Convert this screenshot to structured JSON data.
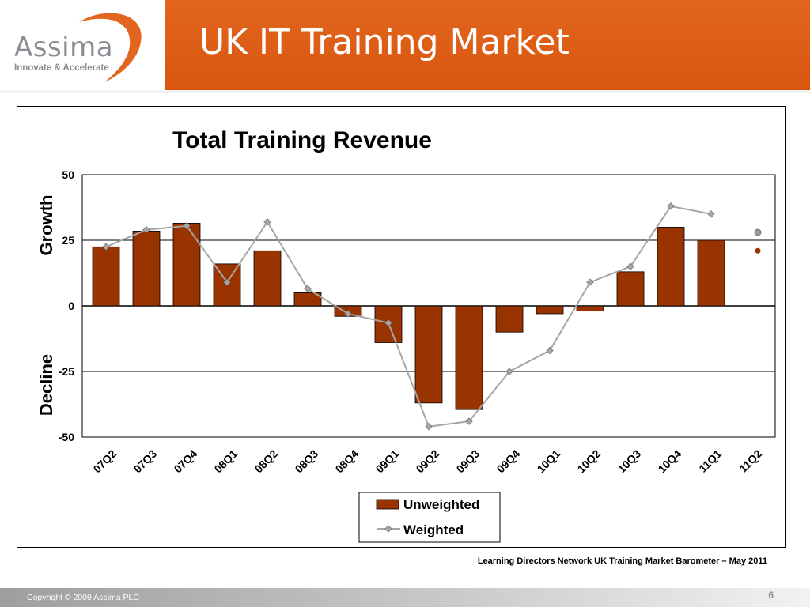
{
  "header": {
    "logo_name": "Assima",
    "logo_tagline": "Innovate & Accelerate",
    "title": "UK IT Training Market"
  },
  "chart_data": {
    "type": "bar",
    "title": "Total Training Revenue",
    "ylabel_top": "Growth",
    "ylabel_bottom": "Decline",
    "categories": [
      "07Q2",
      "07Q3",
      "07Q4",
      "08Q1",
      "08Q2",
      "08Q3",
      "08Q4",
      "09Q1",
      "09Q2",
      "09Q3",
      "09Q4",
      "10Q1",
      "10Q2",
      "10Q3",
      "10Q4",
      "11Q1",
      "11Q2"
    ],
    "ylim": [
      -50,
      50
    ],
    "yticks": [
      50,
      25,
      0,
      -25,
      -50
    ],
    "grid": true,
    "legend_position": "bottom-center",
    "series": [
      {
        "name": "Unweighted",
        "type": "bar",
        "color": "#993300",
        "values": [
          22.5,
          28.5,
          31.5,
          16,
          21,
          5,
          -4,
          -14,
          -37,
          -39.5,
          -10,
          -3,
          -2,
          13,
          30,
          25,
          null
        ]
      },
      {
        "name": "Weighted",
        "type": "line",
        "color": "#a6a6a6",
        "values": [
          22.5,
          29,
          30.5,
          9,
          32,
          6.5,
          -3,
          -6.5,
          -46,
          -44,
          -25,
          -17,
          9,
          15,
          38,
          35,
          null
        ]
      }
    ],
    "forecast": {
      "category": "11Q2",
      "unweighted": 21,
      "weighted": 28
    }
  },
  "source_text": "Learning Directors Network UK Training Market Barometer – May 2011",
  "footer": {
    "copyright": "Copyright © 2009 Assima PLC",
    "page_number": "6"
  },
  "colors": {
    "header_orange": "#d9560e",
    "bar": "#993300",
    "line": "#a6a6a6"
  }
}
